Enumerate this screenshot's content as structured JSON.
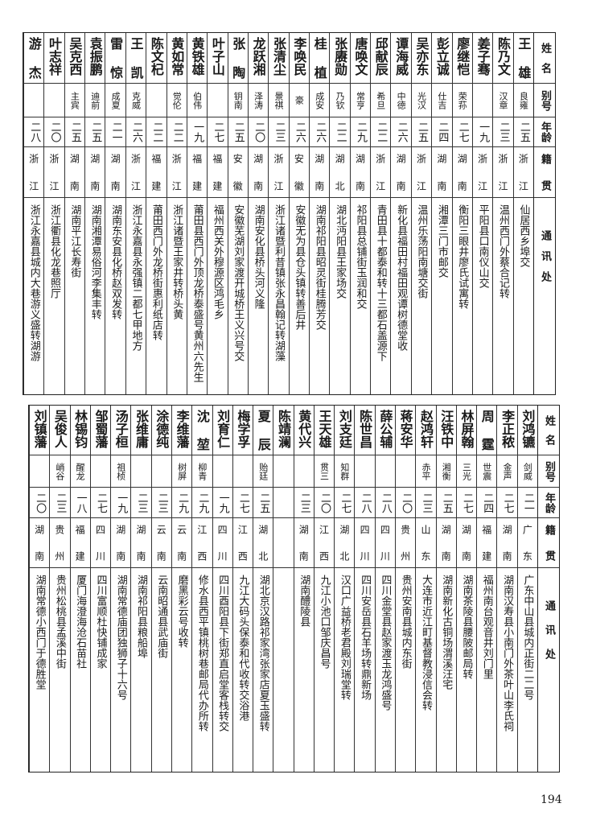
{
  "headers": {
    "name": "姓名",
    "alias": "别号",
    "age": "年龄",
    "native": "籍贯",
    "address": "通讯处"
  },
  "tables": [
    {
      "rows": [
        {
          "name": "王雄",
          "alias": "良雍",
          "age": "二五",
          "native": "浙江",
          "address": "仙居西乡埠交"
        },
        {
          "name": "陈乃文",
          "alias": "汉章",
          "age": "二三",
          "native": "浙江",
          "address": "温州西门外蔡合记转"
        },
        {
          "name": "姜子骞",
          "alias": "",
          "age": "一九",
          "native": "浙江",
          "address": "平阳县口南仪山交"
        },
        {
          "name": "廖继恺",
          "alias": "荣荪",
          "age": "二七",
          "native": "湖南",
          "address": "衡阳三眼井廖氏试寓转"
        },
        {
          "name": "彭立诚",
          "alias": "仕吉",
          "age": "二四",
          "native": "湖南",
          "address": "湘潭三门市邮交"
        },
        {
          "name": "吴亦东",
          "alias": "光汉",
          "age": "二五",
          "native": "浙江",
          "address": "温州乐荡阳南塘交街"
        },
        {
          "name": "谭海威",
          "alias": "中德",
          "age": "二六",
          "native": "湖南",
          "address": "新化县福田村福田观谭树德堂收"
        },
        {
          "name": "邱献辰",
          "alias": "希旦",
          "age": "二二",
          "native": "浙江",
          "address": "青田县十都泰和转十三都石盖源下"
        },
        {
          "name": "唐唤文",
          "alias": "常亨",
          "age": "二九",
          "native": "湖南",
          "address": "祁阳县总铺街玉润和交"
        },
        {
          "name": "张赓勋",
          "alias": "乃钦",
          "age": "二二",
          "native": "湖北",
          "address": "湖北沔阳县王家场交"
        },
        {
          "name": "桂植",
          "alias": "成安",
          "age": "二六",
          "native": "湖南",
          "address": "湖南祁阳县昭灵街桂腾芳交"
        },
        {
          "name": "李唤民",
          "alias": "豪",
          "age": "二六",
          "native": "安徽",
          "address": "安徽无为县仓头镇转善后井"
        },
        {
          "name": "张清尘",
          "alias": "景祺",
          "age": "二三",
          "native": "浙江",
          "address": "浙江诸暨利昔镇张永昌翰记转湖藻"
        },
        {
          "name": "龙跃湘",
          "alias": "泽涛",
          "age": "二〇",
          "native": "湖南",
          "address": "湖南安化县桥头河义隆"
        },
        {
          "name": "张陶",
          "alias": "钥南",
          "age": "二五",
          "native": "安徽",
          "address": "安徽芜湖刘家渡开城桥王义兴号交"
        },
        {
          "name": "叶子山",
          "alias": "",
          "age": "二七",
          "native": "福建",
          "address": "福州西关外穆源区鸿毛乡"
        },
        {
          "name": "黄铁雄",
          "alias": "伯伟",
          "age": "一九",
          "native": "福建",
          "address": "莆田县西门外顶龙桥泰盛号黄州六先生"
        },
        {
          "name": "黄如常",
          "alias": "觉伦",
          "age": "二二",
          "native": "浙江",
          "address": "浙江诸暨王家井转桥头黄"
        },
        {
          "name": "陈文杞",
          "alias": "",
          "age": "二二",
          "native": "福建",
          "address": "莆田西门外龙桥街惠利纸店转"
        },
        {
          "name": "王凯",
          "alias": "克威",
          "age": "二六",
          "native": "浙江",
          "address": "浙江永嘉县永强镇二都七甲地方"
        },
        {
          "name": "雷惊",
          "alias": "成夏",
          "age": "二一",
          "native": "湖南",
          "address": "湖南东安县化桥赵双发转"
        },
        {
          "name": "袁振鹏",
          "alias": "迪前",
          "age": "二五",
          "native": "湖南",
          "address": "湖南湘潭易俗河李集丰转"
        },
        {
          "name": "吴克西",
          "alias": "主宾",
          "age": "二五",
          "native": "湖南",
          "address": "湖南平江长寿街"
        },
        {
          "name": "叶志祥",
          "alias": "",
          "age": "二〇",
          "native": "浙江",
          "address": "浙江衢县化龙巷照厅"
        },
        {
          "name": "游杰",
          "alias": "",
          "age": "二八",
          "native": "浙江",
          "address": "浙江永嘉县城内大巷游义盛转湖游"
        }
      ]
    },
    {
      "rows": [
        {
          "name": "刘鸿镳",
          "alias": "剑威",
          "age": "二一",
          "native": "广东",
          "address": "广东中山县城内正街二二号"
        },
        {
          "name": "李正秾",
          "alias": "金声",
          "age": "二七",
          "native": "湖南",
          "address": "湖南汉寿县小南门外茶叶山李氏祠"
        },
        {
          "name": "周霆",
          "alias": "世震",
          "age": "二四",
          "native": "福建",
          "address": "福州南台观音井刘门里"
        },
        {
          "name": "林屏翰",
          "alias": "三光",
          "age": "二七",
          "native": "湖南",
          "address": "湖南茶陵县腰陂邮局转"
        },
        {
          "name": "汪铁中",
          "alias": "湘衡",
          "age": "二五",
          "native": "湖南",
          "address": "湖南新化古铜场渭溪汪宅"
        },
        {
          "name": "赵鸿轩",
          "alias": "赤平",
          "age": "二三",
          "native": "山东",
          "address": "大连市近江町基督教浸信会转"
        },
        {
          "name": "蒋安华",
          "alias": "",
          "age": "二〇",
          "native": "贵州",
          "address": "贵州安南县城内东街"
        },
        {
          "name": "薛公辅",
          "alias": "",
          "age": "二八",
          "native": "四川",
          "address": "四川金堂县赵家渡玉龙鸿盛号"
        },
        {
          "name": "陈世昌",
          "alias": "",
          "age": "二八",
          "native": "四川",
          "address": "四川安岳县石羊场转鼎新场"
        },
        {
          "name": "刘支廷",
          "alias": "知群",
          "age": "二七",
          "native": "湖北",
          "address": "汉口广益桥老君殿刘瑞堂转"
        },
        {
          "name": "王天雄",
          "alias": "贯三",
          "age": "二〇",
          "native": "江西",
          "address": "九江小池口邹庆昌号"
        },
        {
          "name": "黄代兴",
          "alias": "",
          "age": "二三",
          "native": "湖南",
          "address": "湖南醴陵县"
        },
        {
          "name": "陈靖澜",
          "alias": "",
          "age": "",
          "native": "",
          "address": ""
        },
        {
          "name": "夏辰",
          "alias": "贻廷",
          "age": "二五",
          "native": "湖北",
          "address": "湖北京汉路祁家湾张家店夏玉盛转"
        },
        {
          "name": "梅学孚",
          "alias": "",
          "age": "二七",
          "native": "江西",
          "address": "九江大码头保泰和代收转交浴港"
        },
        {
          "name": "刘育仁",
          "alias": "",
          "age": "一九",
          "native": "四川",
          "address": "四川酉阳县下街郑直启堂客栈转交"
        },
        {
          "name": "沈堃",
          "alias": "柳青",
          "age": "二九",
          "native": "江西",
          "address": "修水县西平镇桃树巷邮局代办所转"
        },
        {
          "name": "李维藩",
          "alias": "树屏",
          "age": "二九",
          "native": "云南",
          "address": "磨黑彩云号收转"
        },
        {
          "name": "涂德纯",
          "alias": "",
          "age": "二三",
          "native": "云南",
          "address": "云南昭通县武庙街"
        },
        {
          "name": "张维庸",
          "alias": "",
          "age": "二三",
          "native": "湖南",
          "address": "湖南祁阳县粮船埠"
        },
        {
          "name": "汤子桓",
          "alias": "祖桢",
          "age": "一九",
          "native": "湖南",
          "address": "湖南常德庙团独狮子十六号"
        },
        {
          "name": "邹蜀藩",
          "alias": "",
          "age": "二七",
          "native": "四川",
          "address": "四川富顺杜快铺成家"
        },
        {
          "name": "林锡钧",
          "alias": "醒龙",
          "age": "一八",
          "native": "福建",
          "address": "厦门海澄海沧石苗社"
        },
        {
          "name": "吴俊人",
          "alias": "峭谷",
          "age": "二三",
          "native": "贵州",
          "address": "贵州松桃县孟溪中街"
        },
        {
          "name": "刘镇藩",
          "alias": "",
          "age": "二〇",
          "native": "湖南",
          "address": "湖南常德小西门于德胜堂"
        }
      ]
    }
  ],
  "page_number": "194"
}
